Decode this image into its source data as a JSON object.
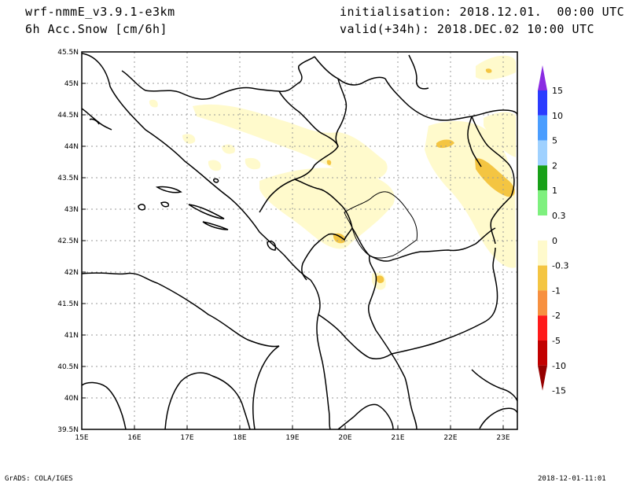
{
  "header": {
    "model": "wrf-nmmE_v3.9.1-e3km",
    "field": "6h Acc.Snow [cm/6h]",
    "initialisation": "initialisation: 2018.12.01.  00:00 UTC",
    "valid": "valid(+34h): 2018.DEC.02 10:00 UTC"
  },
  "map": {
    "lat_labels": [
      "45.5N",
      "45N",
      "44.5N",
      "44N",
      "43.5N",
      "43N",
      "42.5N",
      "42N",
      "41.5N",
      "41N",
      "40.5N",
      "40N",
      "39.5N"
    ],
    "lon_labels": [
      "15E",
      "16E",
      "17E",
      "18E",
      "19E",
      "20E",
      "21E",
      "22E",
      "23E"
    ],
    "grid": true
  },
  "colorbar": {
    "labels": [
      "15",
      "10",
      "5",
      "2",
      "1",
      "0.3",
      "0",
      "-0.3",
      "-1",
      "-2",
      "-5",
      "-10",
      "-15"
    ],
    "colors": [
      "#8a2be2",
      "#2a3cff",
      "#4a9dff",
      "#9fd1ff",
      "#18a018",
      "#7ef07e",
      "#ffffff",
      "#fffacc",
      "#f4c542",
      "#f79040",
      "#ff1a1a",
      "#c20000",
      "#960000"
    ]
  },
  "footer": {
    "left": "GrADS: COLA/IGES",
    "right": "2018-12-01-11:01"
  }
}
